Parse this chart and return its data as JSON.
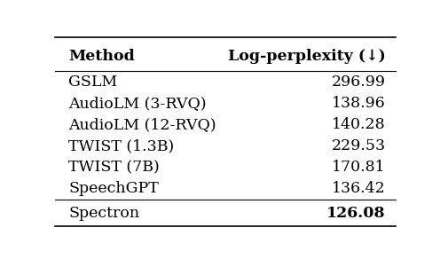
{
  "header": [
    "Method",
    "Log-perplexity (↓)"
  ],
  "rows": [
    [
      "GSLM",
      "296.99"
    ],
    [
      "AudioLM (3-RVQ)",
      "138.96"
    ],
    [
      "AudioLM (12-RVQ)",
      "140.28"
    ],
    [
      "TWIST (1.3B)",
      "229.53"
    ],
    [
      "TWIST (7B)",
      "170.81"
    ],
    [
      "SpeechGPT",
      "136.42"
    ]
  ],
  "last_row_method": "Spectron",
  "last_row_value": "126.08",
  "bg_color": "#ffffff",
  "text_color": "#000000",
  "header_fontsize": 12.5,
  "body_fontsize": 12.5,
  "last_row_fontsize": 12.5
}
